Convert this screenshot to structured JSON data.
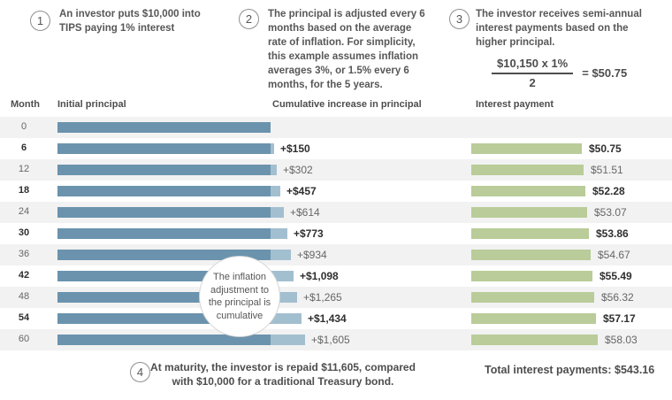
{
  "steps": {
    "step1": {
      "number": "1",
      "lines": [
        "An investor puts $10,000 into",
        "TIPS paying 1% interest"
      ]
    },
    "step2": {
      "number": "2",
      "lines": [
        "The principal is adjusted every 6",
        "months based on the average",
        "rate of inflation. For simplicity,",
        "this example assumes inflation",
        "averages 3%, or 1.5% every 6",
        "months, for the 5 years."
      ]
    },
    "step3": {
      "number": "3",
      "lines": [
        "The investor receives semi-annual",
        "interest payments based on the",
        "higher principal."
      ],
      "formula": {
        "numerator": "$10,150 x 1%",
        "denominator": "2",
        "result": "= $50.75"
      }
    },
    "step4": {
      "number": "4",
      "lines": [
        "At maturity, the investor is repaid $11,605, compared",
        "with $10,000 for a traditional Treasury bond."
      ]
    }
  },
  "columns": {
    "month": "Month",
    "initial": "Initial principal",
    "cumulative": "Cumulative increase in principal",
    "interest": "Interest payment"
  },
  "callout": {
    "lines": [
      "The inflation",
      "adjustment to",
      "the principal is",
      "cumulative"
    ]
  },
  "total_label": "Total interest payments: $543.16",
  "colors": {
    "dark_blue": "#6b93ad",
    "light_blue": "#a2bfd0",
    "green": "#b9cc99",
    "stripe": "#f2f2f2"
  },
  "chart_data": {
    "type": "bar",
    "title": "TIPS principal and interest example",
    "xlabel": "Month",
    "months": [
      0,
      6,
      12,
      18,
      24,
      30,
      36,
      42,
      48,
      54,
      60
    ],
    "initial_principal": 10000,
    "cumulative_increase": [
      0,
      150,
      302,
      457,
      614,
      773,
      934,
      1098,
      1265,
      1434,
      1605
    ],
    "cumulative_labels": [
      "",
      "+$150",
      "+$302",
      "+$457",
      "+$614",
      "+$773",
      "+$934",
      "+$1,098",
      "+$1,265",
      "+$1,434",
      "+$1,605"
    ],
    "interest_payments": [
      null,
      50.75,
      51.51,
      52.28,
      53.07,
      53.86,
      54.67,
      55.49,
      56.32,
      57.17,
      58.03
    ],
    "interest_labels": [
      "",
      "$50.75",
      "$51.51",
      "$52.28",
      "$53.07",
      "$53.86",
      "$54.67",
      "$55.49",
      "$56.32",
      "$57.17",
      "$58.03"
    ],
    "total_interest": 543.16,
    "legend_position": "none",
    "grid": false
  }
}
